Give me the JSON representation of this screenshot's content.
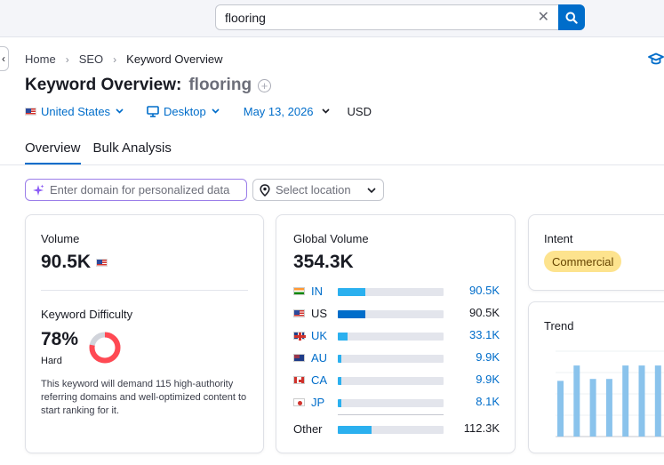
{
  "search": {
    "value": "flooring",
    "clear_glyph": "✕"
  },
  "collapse_glyph": "‹",
  "breadcrumb": {
    "items": [
      "Home",
      "SEO",
      "Keyword Overview"
    ],
    "sep": "›"
  },
  "title": {
    "label": "Keyword Overview:",
    "keyword": "flooring",
    "add_glyph": "+"
  },
  "filters": {
    "country": "United States",
    "device": "Desktop",
    "date": "May 13, 2026",
    "currency": "USD"
  },
  "tabs": [
    "Overview",
    "Bulk Analysis"
  ],
  "domain_input": {
    "placeholder": "Enter domain for personalized data"
  },
  "location": {
    "label": "Select location"
  },
  "volume_card": {
    "label": "Volume",
    "value": "90.5K",
    "kd_label": "Keyword Difficulty",
    "kd_value": "78%",
    "kd_level": "Hard",
    "kd_percent": 78,
    "kd_color": "#ff4953",
    "kd_desc": "This keyword will demand 115 high-authority referring domains and well-optimized content to start ranking for it."
  },
  "global_card": {
    "label": "Global Volume",
    "value": "354.3K",
    "rows": [
      {
        "code": "IN",
        "value": "90.5K",
        "share": 0.26,
        "linked": true
      },
      {
        "code": "US",
        "value": "90.5K",
        "share": 0.26,
        "linked": false
      },
      {
        "code": "UK",
        "value": "33.1K",
        "share": 0.09,
        "linked": true
      },
      {
        "code": "AU",
        "value": "9.9K",
        "share": 0.03,
        "linked": true
      },
      {
        "code": "CA",
        "value": "9.9K",
        "share": 0.03,
        "linked": true
      },
      {
        "code": "JP",
        "value": "8.1K",
        "share": 0.03,
        "linked": true
      }
    ],
    "other": {
      "label": "Other",
      "value": "112.3K",
      "share": 0.32
    }
  },
  "intent_card": {
    "label": "Intent",
    "badge": "Commercial"
  },
  "trend_card": {
    "label": "Trend",
    "bars": [
      0.58,
      0.74,
      0.6,
      0.6,
      0.74,
      0.74,
      0.74
    ]
  },
  "colors": {
    "accent": "#006dca",
    "bar": "#2bb0ef",
    "bar_selected": "#006dca",
    "trend_bar": "#8ac3ec"
  }
}
